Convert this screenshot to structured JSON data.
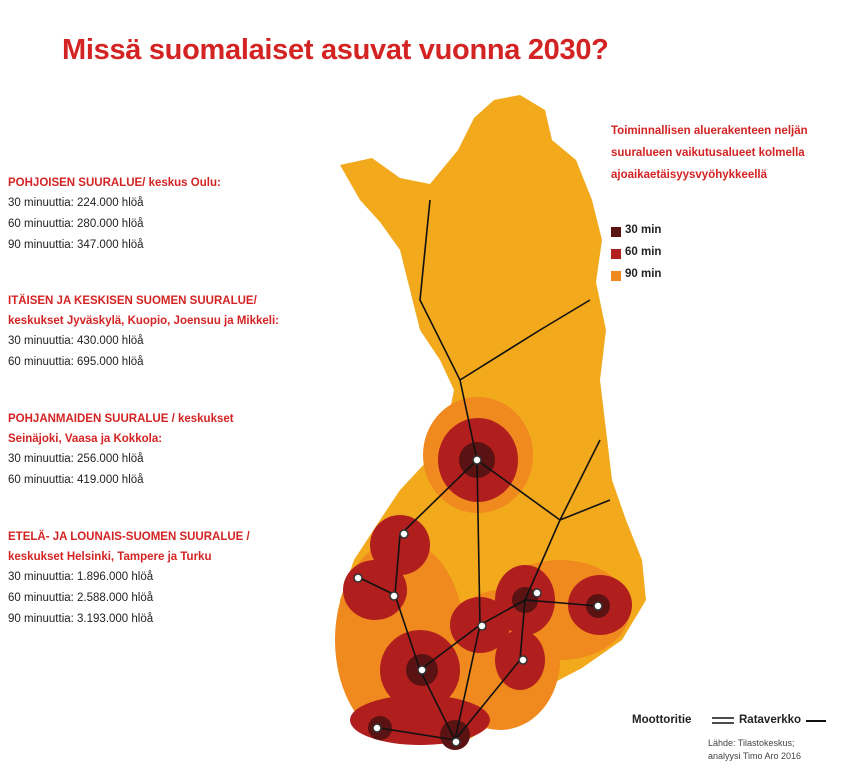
{
  "title": "Missä suomalaiset asuvat vuonna 2030?",
  "regions": [
    {
      "heading": [
        "POHJOISEN SUURALUE/ keskus Oulu:"
      ],
      "lines": [
        "30 minuuttia: 224.000 hlöå",
        "60 minuuttia: 280.000 hlöå",
        "90 minuuttia: 347.000 hlöå"
      ]
    },
    {
      "heading": [
        "ITÄISEN JA KESKISEN SUOMEN SUURALUE/",
        "keskukset Jyväskylä, Kuopio, Joensuu ja Mikkeli:"
      ],
      "lines": [
        "30 minuuttia: 430.000 hlöå",
        "60 minuuttia: 695.000 hlöå"
      ]
    },
    {
      "heading": [
        "POHJANMAIDEN SUURALUE / keskukset",
        "Seinäjoki, Vaasa ja Kokkola:"
      ],
      "lines": [
        "30 minuuttia: 256.000 hlöå",
        "60 minuuttia: 419.000 hlöå"
      ]
    },
    {
      "heading": [
        "ETELÄ- JA LOUNAIS-SUOMEN SUURALUE /",
        "keskukset Helsinki, Tampere ja Turku"
      ],
      "lines": [
        "30 minuuttia: 1.896.000 hlöå",
        "60 minuuttia: 2.588.000 hlöå",
        "90 minuuttia: 3.193.000 hlöå"
      ]
    }
  ],
  "legend": {
    "intro": [
      "Toiminnallisen aluerakenteen neljän",
      "suuralueen vaikutusalueet kolmella",
      "ajoaikaetäisyysvyöhykkeellä"
    ],
    "items": [
      {
        "label": "30 min",
        "color": "#5a1212"
      },
      {
        "label": "60 min",
        "color": "#b01e1e"
      },
      {
        "label": "90 min",
        "color": "#f0891e"
      }
    ]
  },
  "roads": {
    "motorway": "Moottoritie",
    "railway": "Rataverkko"
  },
  "source": [
    "Lähde: Tilastokeskus;",
    "analyysi Timo Aro 2016"
  ]
}
